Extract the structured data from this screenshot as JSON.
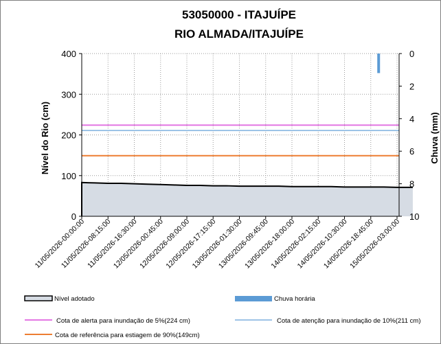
{
  "chart_data": {
    "type": "line",
    "title": "53050000 -  ITAJUÍPE",
    "subtitle": "RIO ALMADA/ITAJUÍPE",
    "ylabel": "Nível do Rio (cm)",
    "y2label": "Chuva (mm)",
    "ylim": [
      0,
      400
    ],
    "y2lim": [
      0,
      10
    ],
    "y2_inverted": true,
    "yticks": [
      "0",
      "100",
      "200",
      "300",
      "400"
    ],
    "y2ticks": [
      "0",
      "2",
      "4",
      "6",
      "8",
      "10"
    ],
    "grid": true,
    "x_categories": [
      "11/05/2026-00:00:00",
      "11/05/2026-08:15:00",
      "11/05/2026-16:30:00",
      "12/05/2026-00:45:00",
      "12/05/2026-09:00:00",
      "12/05/2026-17:15:00",
      "13/05/2026-01:30:00",
      "13/05/2026-09:45:00",
      "13/05/2026-18:00:00",
      "14/05/2026-02:15:00",
      "14/05/2026-10:30:00",
      "14/05/2026-18:45:00",
      "15/05/2026-03:00:00"
    ],
    "series": [
      {
        "name": "Nível adotado",
        "kind": "area",
        "color": "#000000",
        "fill": "#d6dce4",
        "x_index": [
          0,
          0.5,
          1,
          1.5,
          2,
          2.5,
          3,
          3.5,
          4,
          4.5,
          5,
          5.5,
          6,
          6.5,
          7,
          7.5,
          8,
          8.5,
          9,
          9.5,
          10,
          10.5,
          11,
          11.5,
          12,
          12.6
        ],
        "values": [
          83,
          82,
          81,
          81,
          80,
          79,
          78,
          77,
          76,
          76,
          75,
          75,
          74,
          74,
          74,
          74,
          73,
          73,
          73,
          73,
          72,
          72,
          72,
          72,
          71,
          71
        ]
      },
      {
        "name": "Chuva horária",
        "kind": "bar",
        "color": "#5b9bd5",
        "bars": [
          {
            "x_index": 11.3,
            "value": 1.2
          }
        ]
      },
      {
        "name": "Cota de alerta para inundação de 5%(224 cm)",
        "kind": "hline",
        "value": 224,
        "color": "#e377e3"
      },
      {
        "name": "Cota de atenção para inundação de 10%(211 cm)",
        "kind": "hline",
        "value": 211,
        "color": "#9dc3e6"
      },
      {
        "name": "Cota de referência para estiagem de 90%(149cm)",
        "kind": "hline",
        "value": 149,
        "color": "#ed7d31"
      }
    ],
    "legend": [
      {
        "label": "Nível adotado",
        "swatch": "box"
      },
      {
        "label": "Chuva horária",
        "swatch": "bar"
      },
      {
        "label": "Cota de alerta para inundação de 5%(224 cm)",
        "swatch": "line"
      },
      {
        "label": "Cota de atenção para inundação de 10%(211 cm)",
        "swatch": "line"
      },
      {
        "label": "Cota de referência para estiagem de 90%(149cm)",
        "swatch": "line"
      }
    ],
    "legend_position": "bottom"
  }
}
